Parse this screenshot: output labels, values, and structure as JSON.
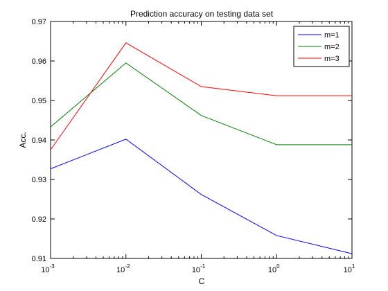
{
  "chart_data": {
    "type": "line",
    "title": "Prediction accuracy on testing data set",
    "xlabel": "C",
    "ylabel": "Acc.",
    "x_scale": "log",
    "x": [
      0.001,
      0.01,
      0.1,
      1,
      10
    ],
    "x_tick_labels": [
      {
        "base": "10",
        "exp": "-3"
      },
      {
        "base": "10",
        "exp": "-2"
      },
      {
        "base": "10",
        "exp": "-1"
      },
      {
        "base": "10",
        "exp": "0"
      },
      {
        "base": "10",
        "exp": "1"
      }
    ],
    "xlim": [
      0.001,
      10
    ],
    "ylim": [
      0.91,
      0.97
    ],
    "y_ticks": [
      0.91,
      0.92,
      0.93,
      0.94,
      0.95,
      0.96,
      0.97
    ],
    "y_tick_labels": [
      "0.91",
      "0.92",
      "0.93",
      "0.94",
      "0.95",
      "0.96",
      "0.97"
    ],
    "grid": false,
    "legend_position": "top-right",
    "series": [
      {
        "name": "m=1",
        "color": "#0000ff",
        "values": [
          0.9327,
          0.9402,
          0.9262,
          0.9158,
          0.9112
        ]
      },
      {
        "name": "m=2",
        "color": "#008000",
        "values": [
          0.9433,
          0.9595,
          0.9462,
          0.9388,
          0.9388
        ]
      },
      {
        "name": "m=3",
        "color": "#ff0000",
        "values": [
          0.9375,
          0.9646,
          0.9535,
          0.9512,
          0.9512
        ]
      }
    ]
  }
}
